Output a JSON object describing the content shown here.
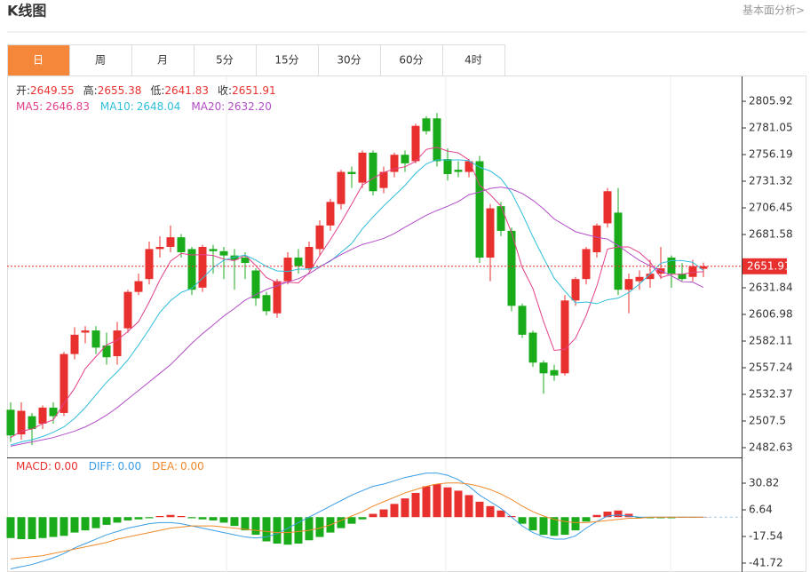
{
  "header": {
    "title": "K线图",
    "link": "基本面分析>"
  },
  "tabs": [
    "日",
    "周",
    "月",
    "5分",
    "15分",
    "30分",
    "60分",
    "4时"
  ],
  "active_tab": 0,
  "chart_data": [
    {
      "type": "candlestick",
      "summary": [
        {
          "label": "开:",
          "text": "2649.55"
        },
        {
          "label": "高:",
          "text": "2655.38"
        },
        {
          "label": "低:",
          "text": "2641.83"
        },
        {
          "label": "收:",
          "text": "2651.91"
        }
      ],
      "up_color": "#e8312f",
      "down_color": "#1aab1a",
      "open": [
        2518,
        2495,
        2512,
        2505,
        2520,
        2515,
        2570,
        2590,
        2592,
        2578,
        2568,
        2594,
        2628,
        2640,
        2668,
        2670,
        2679,
        2668,
        2632,
        2668,
        2666,
        2662,
        2660,
        2648,
        2625,
        2608,
        2638,
        2660,
        2650,
        2668,
        2690,
        2710,
        2740,
        2730,
        2758,
        2725,
        2740,
        2756,
        2750,
        2790,
        2790,
        2752,
        2742,
        2740,
        2750,
        2660,
        2708,
        2685,
        2615,
        2590,
        2562,
        2555,
        2552,
        2620,
        2640,
        2665,
        2692,
        2702,
        2630,
        2638,
        2640,
        2645,
        2660,
        2645,
        2642,
        2649.55
      ],
      "high": [
        2525,
        2525,
        2515,
        2522,
        2525,
        2572,
        2595,
        2596,
        2596,
        2590,
        2600,
        2630,
        2645,
        2675,
        2680,
        2690,
        2682,
        2670,
        2672,
        2672,
        2670,
        2668,
        2665,
        2650,
        2628,
        2640,
        2665,
        2668,
        2675,
        2695,
        2715,
        2742,
        2745,
        2760,
        2760,
        2745,
        2758,
        2760,
        2785,
        2792,
        2795,
        2762,
        2750,
        2752,
        2755,
        2710,
        2712,
        2688,
        2617,
        2592,
        2564,
        2560,
        2625,
        2642,
        2670,
        2692,
        2725,
        2725,
        2645,
        2648,
        2658,
        2670,
        2662,
        2655,
        2658,
        2655.38
      ],
      "low": [
        2488,
        2490,
        2485,
        2500,
        2505,
        2512,
        2565,
        2580,
        2570,
        2560,
        2560,
        2590,
        2625,
        2635,
        2660,
        2665,
        2660,
        2625,
        2628,
        2645,
        2640,
        2630,
        2640,
        2615,
        2606,
        2604,
        2635,
        2645,
        2648,
        2662,
        2685,
        2705,
        2725,
        2725,
        2718,
        2720,
        2735,
        2740,
        2748,
        2775,
        2745,
        2732,
        2735,
        2735,
        2655,
        2638,
        2680,
        2610,
        2585,
        2558,
        2533,
        2545,
        2550,
        2615,
        2635,
        2660,
        2688,
        2625,
        2608,
        2630,
        2632,
        2640,
        2632,
        2638,
        2638,
        2641.83
      ],
      "close": [
        2494,
        2517,
        2500,
        2520,
        2512,
        2570,
        2588,
        2592,
        2576,
        2567,
        2592,
        2628,
        2638,
        2668,
        2670,
        2679,
        2665,
        2630,
        2670,
        2666,
        2662,
        2658,
        2655,
        2622,
        2610,
        2638,
        2660,
        2652,
        2670,
        2690,
        2712,
        2740,
        2738,
        2758,
        2722,
        2740,
        2756,
        2748,
        2783,
        2778,
        2750,
        2738,
        2740,
        2750,
        2660,
        2706,
        2685,
        2615,
        2588,
        2562,
        2552,
        2550,
        2620,
        2640,
        2668,
        2690,
        2722,
        2630,
        2640,
        2642,
        2645,
        2650,
        2645,
        2640,
        2652,
        2651.91
      ],
      "series": [
        {
          "name": "MA5:",
          "color": "#e2418a",
          "value_label": "2646.83",
          "values": [
            2492,
            2498,
            2500,
            2505,
            2508.6,
            2523.8,
            2538,
            2556.4,
            2567.6,
            2578.6,
            2583,
            2591,
            2600.2,
            2618.6,
            2639.2,
            2656.6,
            2664,
            2662.4,
            2662.8,
            2662,
            2658.6,
            2657.2,
            2662.2,
            2652.6,
            2641.4,
            2636.6,
            2637,
            2636.4,
            2646,
            2662,
            2676.8,
            2692.8,
            2710,
            2727.6,
            2734,
            2739.6,
            2742.8,
            2744.8,
            2749.8,
            2761,
            2763,
            2759.4,
            2757.8,
            2751.2,
            2727.6,
            2718.8,
            2708.2,
            2683.2,
            2650.8,
            2631.2,
            2600.4,
            2573.4,
            2574.4,
            2584.8,
            2606,
            2633.6,
            2668,
            2670,
            2670,
            2664.8,
            2655.8,
            2641.4,
            2644.4,
            2644.4,
            2646.4,
            2646.83
          ]
        },
        {
          "name": "MA10:",
          "color": "#2fbedb",
          "value_label": "2648.04",
          "values": [
            2485,
            2488,
            2490,
            2493,
            2497,
            2502,
            2510,
            2520,
            2532,
            2543.6,
            2553.4,
            2564.5,
            2578.3,
            2593.1,
            2608.9,
            2619.8,
            2627.5,
            2631.3,
            2640.7,
            2650.6,
            2657.6,
            2660.6,
            2662.3,
            2657.7,
            2651.7,
            2647.6,
            2647.1,
            2649.3,
            2649.3,
            2651.7,
            2656.7,
            2664.9,
            2673.2,
            2686.8,
            2698,
            2708.2,
            2717.8,
            2727.4,
            2738.7,
            2747.5,
            2751.3,
            2751.1,
            2751.3,
            2750.5,
            2744.3,
            2740.9,
            2733.8,
            2720.5,
            2701,
            2679.4,
            2659.6,
            2640.8,
            2628.8,
            2617.8,
            2618.6,
            2617,
            2620.7,
            2622.2,
            2627.4,
            2635.4,
            2644.7,
            2654.7,
            2657.2,
            2657.2,
            2655.6,
            2648.04
          ]
        },
        {
          "name": "MA20:",
          "color": "#b24dc6",
          "value_label": "2632.20",
          "values": [
            2484,
            2486,
            2488,
            2490,
            2492,
            2495,
            2498,
            2502,
            2507,
            2513,
            2520,
            2528,
            2536,
            2544,
            2552,
            2560,
            2570,
            2580,
            2589,
            2597.1,
            2605.5,
            2612.6,
            2620.3,
            2625.4,
            2630.3,
            2633.7,
            2637.3,
            2640.3,
            2645,
            2651.2,
            2657.2,
            2662.8,
            2667.8,
            2672.3,
            2674.9,
            2677.9,
            2682.5,
            2688.4,
            2694,
            2699.6,
            2704,
            2708,
            2712.3,
            2718.7,
            2721.2,
            2724.6,
            2725.8,
            2724,
            2719.9,
            2713.5,
            2705.5,
            2696,
            2690.1,
            2684.2,
            2681.5,
            2679,
            2677.3,
            2671.4,
            2664.2,
            2657.4,
            2652.2,
            2647.8,
            2643,
            2637.5,
            2637.1,
            2632.2
          ]
        }
      ],
      "ylim": [
        2473.5,
        2830
      ],
      "yticks": [
        2805.92,
        2781.05,
        2756.19,
        2731.32,
        2706.45,
        2681.58,
        2631.84,
        2606.98,
        2582.11,
        2557.24,
        2532.37,
        2507.5,
        2482.63
      ],
      "last_price": 2651.91
    },
    {
      "type": "macd",
      "series": [
        {
          "name": "MACD:",
          "type": "bar",
          "color": "#e8312f",
          "down_color": "#1aab1a",
          "value_label": "0.00",
          "values": [
            -19,
            -20,
            -20,
            -19,
            -18,
            -17,
            -14,
            -12,
            -10,
            -7,
            -5,
            -3,
            -2,
            -1,
            1,
            2,
            1,
            -1,
            -2,
            -3,
            -5,
            -8,
            -12,
            -16,
            -22,
            -24,
            -25,
            -24,
            -21,
            -18,
            -14,
            -10,
            -6,
            -2,
            3,
            7,
            12,
            17,
            22,
            28,
            30,
            27,
            24,
            20,
            14,
            10,
            6,
            1,
            -6,
            -12,
            -16,
            -17,
            -16,
            -12,
            -4,
            2,
            5,
            6,
            3,
            -1,
            -1,
            -1,
            -1,
            -0.5,
            -0.5,
            0
          ]
        },
        {
          "name": "DIFF:",
          "type": "line",
          "color": "#3a9de6",
          "value_label": "0.00",
          "values": [
            -47,
            -45,
            -43,
            -40,
            -37,
            -33,
            -28,
            -24,
            -20,
            -16,
            -13,
            -10,
            -8,
            -6,
            -5,
            -5,
            -6,
            -8,
            -10,
            -12,
            -14,
            -16,
            -18,
            -19,
            -18,
            -15,
            -10,
            -5,
            0,
            5,
            10,
            15,
            20,
            24,
            28,
            30,
            33,
            36,
            38,
            40,
            40,
            38,
            34,
            28,
            20,
            14,
            8,
            0,
            -8,
            -14,
            -18,
            -20,
            -20,
            -17,
            -10,
            -4,
            1,
            2,
            1,
            0,
            0,
            0,
            0,
            0,
            0,
            0
          ]
        },
        {
          "name": "DEA:",
          "type": "line",
          "color": "#f0892a",
          "value_label": "0.00",
          "values": [
            -38,
            -37,
            -36,
            -35,
            -33,
            -31,
            -29,
            -27,
            -25,
            -23,
            -20,
            -18,
            -16,
            -14,
            -12,
            -10,
            -9,
            -8,
            -8,
            -8,
            -9,
            -10,
            -11,
            -12,
            -13,
            -14,
            -14,
            -13,
            -12,
            -10,
            -7,
            -3,
            1,
            5,
            10,
            14,
            18,
            22,
            25,
            28,
            30,
            31,
            31,
            30,
            28,
            25,
            21,
            16,
            10,
            5,
            1,
            -2,
            -4,
            -5,
            -5,
            -4,
            -3,
            -2,
            -1,
            -1,
            0,
            0,
            0,
            0,
            0,
            0
          ]
        }
      ],
      "ylim": [
        -49.8,
        54.2
      ],
      "yticks": [
        30.82,
        6.64,
        -17.54,
        -41.72
      ]
    }
  ]
}
